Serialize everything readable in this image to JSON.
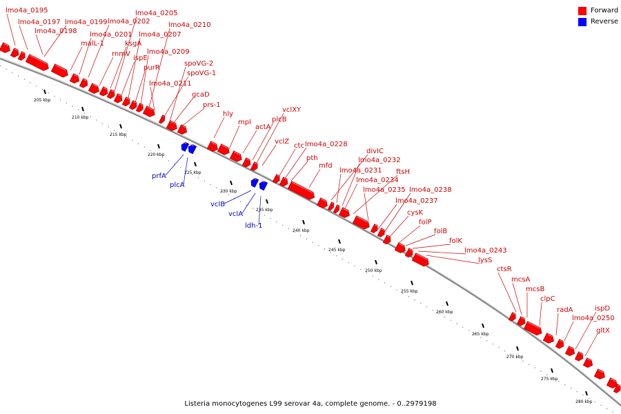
{
  "caption": "Listeria monocytogenes L99 serovar 4a, complete genome. - 0..2979198",
  "legend": {
    "items": [
      {
        "label": "Forward",
        "color": "#ff0000"
      },
      {
        "label": "Reverse",
        "color": "#0000ff"
      }
    ]
  },
  "colors": {
    "forward": "#ff0000",
    "forward_dark": "#a00000",
    "reverse": "#0000ff",
    "reverse_dark": "#000090",
    "forward_label": "#cc0000",
    "reverse_label": "#0000cc",
    "backbone": "#888888"
  },
  "scale": {
    "unit": "kbp",
    "ticks": [
      205,
      210,
      215,
      220,
      225,
      230,
      235,
      240,
      245,
      250,
      255,
      260,
      265,
      270,
      275,
      280
    ]
  },
  "genes_forward": [
    "lmo4a_0195",
    "lmo4a_0197",
    "lmo4a_0198",
    "lmo4a_0199",
    "malL-1",
    "lmo4a_0201",
    "lmo4a_0202",
    "rnmV",
    "ksgA",
    "lmo4a_0205",
    "ispE",
    "lmo4a_0207",
    "purR",
    "lmo4a_0209",
    "lmo4a_0210",
    "lmo4a_0211",
    "spoVG-1",
    "spoVG-2",
    "gcaD",
    "prs-1",
    "hly",
    "mpl",
    "actA",
    "plcB",
    "vclXY",
    "vclZ",
    "ctc",
    "lmo4a_0228",
    "pth",
    "mfd",
    "divIC",
    "lmo4a_0231",
    "lmo4a_0232",
    "lmo4a_0234",
    "ftsH",
    "lmo4a_0235",
    "lmo4a_0237",
    "lmo4a_0238",
    "cysK",
    "folP",
    "folB",
    "folK",
    "lmo4a_0243",
    "lysS",
    "ctsR",
    "mcsA",
    "mcsB",
    "clpC",
    "radA",
    "ispD",
    "lmo4a_0250",
    "gltX"
  ],
  "genes_reverse": [
    "prfA",
    "plcA",
    "vclB",
    "vclA",
    "ldh-1"
  ]
}
